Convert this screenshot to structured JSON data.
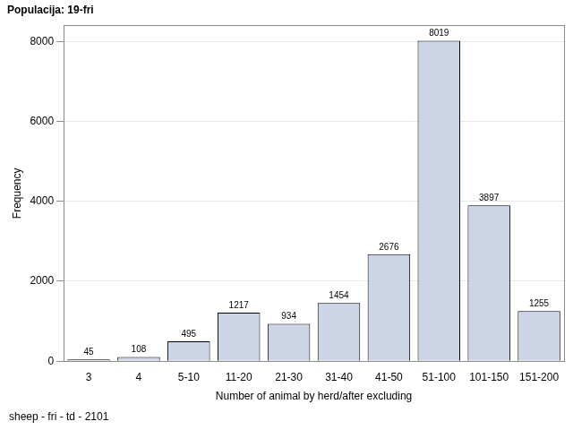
{
  "chart_data": {
    "type": "bar",
    "title": "Populacija: 19-fri",
    "footnote": "sheep - fri - td - 2101",
    "x_label": "Number of animal by herd/after excluding",
    "y_label": "Frequency",
    "categories": [
      "3",
      "4",
      "5-10",
      "11-20",
      "21-30",
      "31-40",
      "41-50",
      "51-100",
      "101-150",
      "151-200"
    ],
    "values": [
      45,
      108,
      495,
      1217,
      934,
      1454,
      2676,
      8019,
      3897,
      1255
    ],
    "color": "#cbd5e6",
    "ylim": [
      0,
      8400
    ],
    "yticks": [
      0,
      2000,
      4000,
      6000,
      8000
    ],
    "grid": true,
    "data_labels": true
  }
}
